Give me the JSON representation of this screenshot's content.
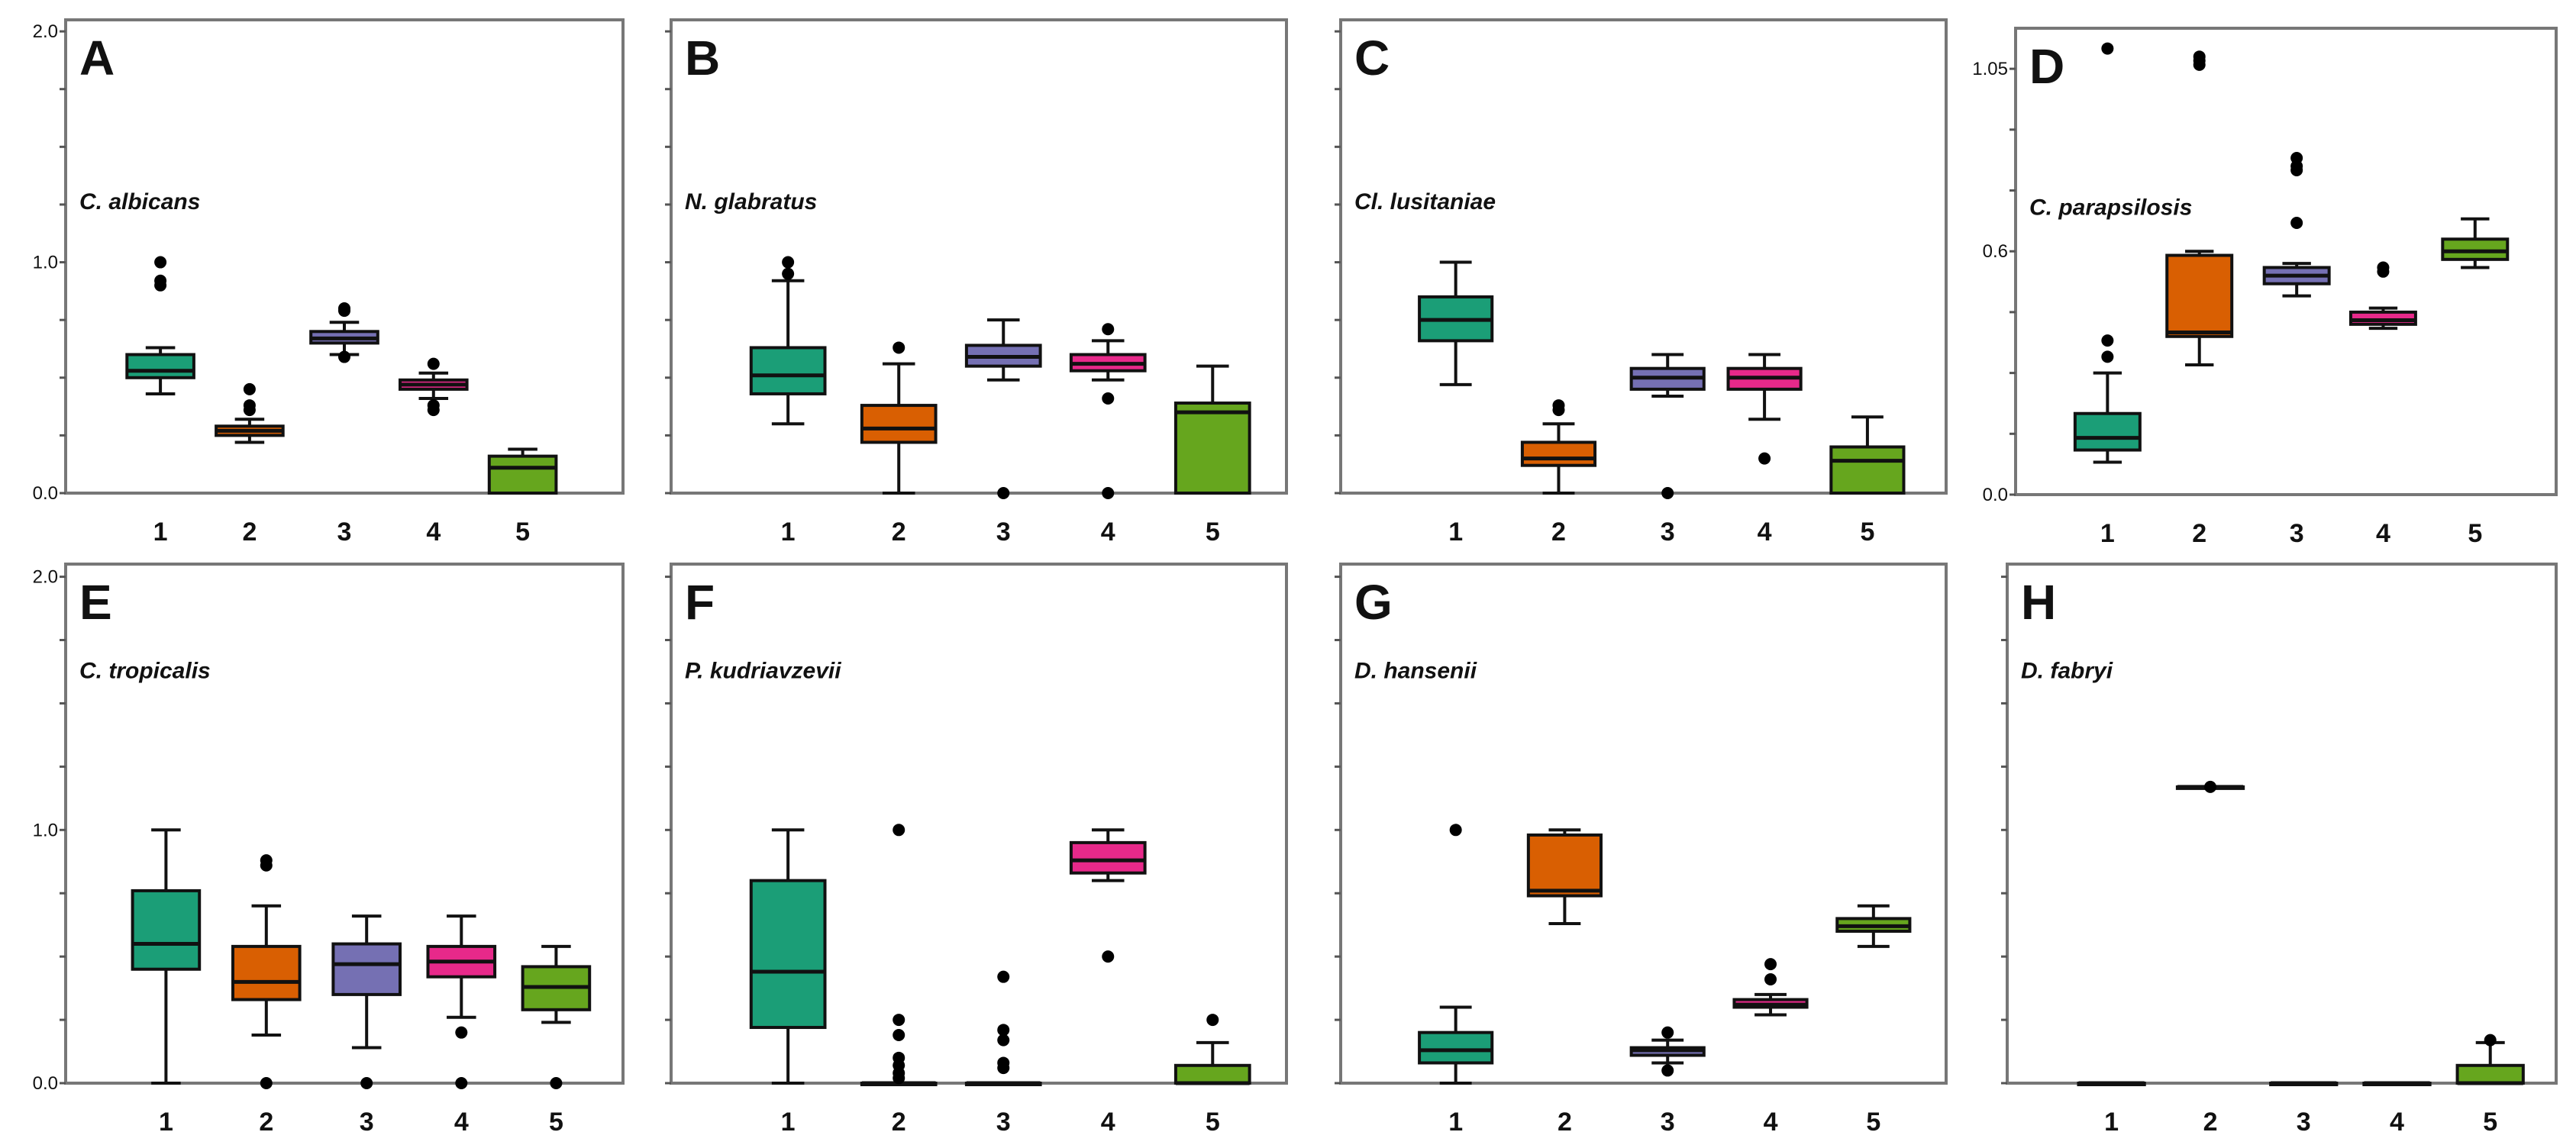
{
  "colors": [
    "#1b9e77",
    "#d95f02",
    "#7570b3",
    "#e7298a",
    "#66a61e"
  ],
  "chart_data": [
    {
      "type": "box",
      "panel": "A",
      "species": "C. albicans",
      "ylim": [
        0,
        2.05
      ],
      "yticks": [
        0,
        0.25,
        0.5,
        0.75,
        1,
        1.25,
        1.5,
        1.75,
        2
      ],
      "ytick_labels": [
        {
          "v": 0,
          "t": "0.0"
        },
        {
          "v": 1,
          "t": "1.0"
        },
        {
          "v": 2,
          "t": "2.0"
        }
      ],
      "categories": [
        "1",
        "2",
        "3",
        "4",
        "5"
      ],
      "boxes": [
        {
          "q1": 0.5,
          "median": 0.53,
          "q3": 0.6,
          "wlo": 0.43,
          "whi": 0.63,
          "outliers": [
            1.0,
            0.92,
            0.9
          ]
        },
        {
          "q1": 0.25,
          "median": 0.27,
          "q3": 0.29,
          "wlo": 0.22,
          "whi": 0.32,
          "outliers": [
            0.45,
            0.38,
            0.36
          ]
        },
        {
          "q1": 0.65,
          "median": 0.67,
          "q3": 0.7,
          "wlo": 0.6,
          "whi": 0.74,
          "outliers": [
            0.8,
            0.79,
            0.59
          ]
        },
        {
          "q1": 0.45,
          "median": 0.47,
          "q3": 0.49,
          "wlo": 0.41,
          "whi": 0.52,
          "outliers": [
            0.56,
            0.38,
            0.36
          ]
        },
        {
          "q1": 0,
          "median": 0.11,
          "q3": 0.16,
          "wlo": 0,
          "whi": 0.19,
          "outliers": []
        }
      ]
    },
    {
      "type": "box",
      "panel": "B",
      "species": "N. glabratus",
      "ylim": [
        0,
        2.05
      ],
      "yticks": [
        0,
        0.25,
        0.5,
        0.75,
        1,
        1.25,
        1.5,
        1.75,
        2
      ],
      "ytick_labels": [],
      "categories": [
        "1",
        "2",
        "3",
        "4",
        "5"
      ],
      "boxes": [
        {
          "q1": 0.43,
          "median": 0.51,
          "q3": 0.63,
          "wlo": 0.3,
          "whi": 0.92,
          "outliers": [
            1.0,
            0.95
          ]
        },
        {
          "q1": 0.22,
          "median": 0.28,
          "q3": 0.38,
          "wlo": 0,
          "whi": 0.56,
          "outliers": [
            0.63
          ]
        },
        {
          "q1": 0.55,
          "median": 0.59,
          "q3": 0.64,
          "wlo": 0.49,
          "whi": 0.75,
          "outliers": [
            0
          ]
        },
        {
          "q1": 0.53,
          "median": 0.56,
          "q3": 0.6,
          "wlo": 0.49,
          "whi": 0.66,
          "outliers": [
            0.71,
            0.41,
            0
          ]
        },
        {
          "q1": 0,
          "median": 0.35,
          "q3": 0.39,
          "wlo": 0,
          "whi": 0.55,
          "outliers": []
        }
      ]
    },
    {
      "type": "box",
      "panel": "C",
      "species": "Cl. lusitaniae",
      "ylim": [
        0,
        2.05
      ],
      "yticks": [
        0,
        0.25,
        0.5,
        0.75,
        1,
        1.25,
        1.5,
        1.75,
        2
      ],
      "ytick_labels": [],
      "categories": [
        "1",
        "2",
        "3",
        "4",
        "5"
      ],
      "boxes": [
        {
          "q1": 0.66,
          "median": 0.75,
          "q3": 0.85,
          "wlo": 0.47,
          "whi": 1.0,
          "outliers": []
        },
        {
          "q1": 0.12,
          "median": 0.15,
          "q3": 0.22,
          "wlo": 0,
          "whi": 0.3,
          "outliers": [
            0.38,
            0.36
          ]
        },
        {
          "q1": 0.45,
          "median": 0.5,
          "q3": 0.54,
          "wlo": 0.42,
          "whi": 0.6,
          "outliers": [
            0
          ]
        },
        {
          "q1": 0.45,
          "median": 0.5,
          "q3": 0.54,
          "wlo": 0.32,
          "whi": 0.6,
          "outliers": [
            0.15
          ]
        },
        {
          "q1": 0,
          "median": 0.14,
          "q3": 0.2,
          "wlo": 0,
          "whi": 0.33,
          "outliers": []
        }
      ]
    },
    {
      "type": "box",
      "panel": "D",
      "species": "C. parapsilosis",
      "ylim": [
        0,
        1.15
      ],
      "yticks": [
        0,
        0.15,
        0.3,
        0.45,
        0.6,
        0.75,
        0.9,
        1.05
      ],
      "ytick_labels": [
        {
          "v": 0,
          "t": "0.0"
        },
        {
          "v": 0.6,
          "t": "0.6"
        },
        {
          "v": 1.05,
          "t": "1.05"
        }
      ],
      "categories": [
        "1",
        "2",
        "3",
        "4",
        "5"
      ],
      "boxes": [
        {
          "q1": 0.11,
          "median": 0.14,
          "q3": 0.2,
          "wlo": 0.08,
          "whi": 0.3,
          "outliers": [
            1.1,
            0.38,
            0.34
          ]
        },
        {
          "q1": 0.39,
          "median": 0.4,
          "q3": 0.59,
          "wlo": 0.32,
          "whi": 0.6,
          "outliers": [
            1.08,
            1.07,
            1.06
          ]
        },
        {
          "q1": 0.52,
          "median": 0.54,
          "q3": 0.56,
          "wlo": 0.49,
          "whi": 0.57,
          "outliers": [
            0.83,
            0.81,
            0.8,
            0.67
          ]
        },
        {
          "q1": 0.42,
          "median": 0.43,
          "q3": 0.45,
          "wlo": 0.41,
          "whi": 0.46,
          "outliers": [
            0.56,
            0.55
          ]
        },
        {
          "q1": 0.58,
          "median": 0.6,
          "q3": 0.63,
          "wlo": 0.56,
          "whi": 0.68,
          "outliers": []
        }
      ]
    },
    {
      "type": "box",
      "panel": "E",
      "species": "C. tropicalis",
      "ylim": [
        0,
        2.05
      ],
      "yticks": [
        0,
        0.25,
        0.5,
        0.75,
        1,
        1.25,
        1.5,
        1.75,
        2
      ],
      "ytick_labels": [
        {
          "v": 0,
          "t": "0.0"
        },
        {
          "v": 1,
          "t": "1.0"
        },
        {
          "v": 2,
          "t": "2.0"
        }
      ],
      "categories": [
        "1",
        "2",
        "3",
        "4",
        "5"
      ],
      "boxes": [
        {
          "q1": 0.45,
          "median": 0.55,
          "q3": 0.76,
          "wlo": 0,
          "whi": 1.0,
          "outliers": []
        },
        {
          "q1": 0.33,
          "median": 0.4,
          "q3": 0.54,
          "wlo": 0.19,
          "whi": 0.7,
          "outliers": [
            0.88,
            0.86,
            0
          ]
        },
        {
          "q1": 0.35,
          "median": 0.47,
          "q3": 0.55,
          "wlo": 0.14,
          "whi": 0.66,
          "outliers": [
            0
          ]
        },
        {
          "q1": 0.42,
          "median": 0.48,
          "q3": 0.54,
          "wlo": 0.26,
          "whi": 0.66,
          "outliers": [
            0.2,
            0
          ]
        },
        {
          "q1": 0.29,
          "median": 0.38,
          "q3": 0.46,
          "wlo": 0.24,
          "whi": 0.54,
          "outliers": [
            0
          ]
        }
      ]
    },
    {
      "type": "box",
      "panel": "F",
      "species": "P. kudriavzevii",
      "ylim": [
        0,
        2.05
      ],
      "yticks": [
        0,
        0.25,
        0.5,
        0.75,
        1,
        1.25,
        1.5,
        1.75,
        2
      ],
      "ytick_labels": [],
      "categories": [
        "1",
        "2",
        "3",
        "4",
        "5"
      ],
      "boxes": [
        {
          "q1": 0.22,
          "median": 0.44,
          "q3": 0.8,
          "wlo": 0,
          "whi": 1.0,
          "outliers": []
        },
        {
          "q1": 0,
          "median": 0,
          "q3": 0,
          "wlo": 0,
          "whi": 0,
          "outliers": [
            1.0,
            0.25,
            0.19,
            0.1,
            0.07,
            0.04,
            0.02
          ]
        },
        {
          "q1": 0,
          "median": 0,
          "q3": 0,
          "wlo": 0,
          "whi": 0,
          "outliers": [
            0.42,
            0.21,
            0.17,
            0.08,
            0.06
          ]
        },
        {
          "q1": 0.83,
          "median": 0.88,
          "q3": 0.95,
          "wlo": 0.8,
          "whi": 1.0,
          "outliers": [
            0.5
          ]
        },
        {
          "q1": 0,
          "median": 0,
          "q3": 0.07,
          "wlo": 0,
          "whi": 0.16,
          "outliers": [
            0.25
          ]
        }
      ]
    },
    {
      "type": "box",
      "panel": "G",
      "species": "D. hansenii",
      "ylim": [
        0,
        2.05
      ],
      "yticks": [
        0,
        0.25,
        0.5,
        0.75,
        1,
        1.25,
        1.5,
        1.75,
        2
      ],
      "ytick_labels": [],
      "categories": [
        "1",
        "2",
        "3",
        "4",
        "5"
      ],
      "boxes": [
        {
          "q1": 0.08,
          "median": 0.13,
          "q3": 0.2,
          "wlo": 0,
          "whi": 0.3,
          "outliers": [
            1.0
          ]
        },
        {
          "q1": 0.74,
          "median": 0.76,
          "q3": 0.98,
          "wlo": 0.63,
          "whi": 1.0,
          "outliers": []
        },
        {
          "q1": 0.11,
          "median": 0.13,
          "q3": 0.14,
          "wlo": 0.08,
          "whi": 0.17,
          "outliers": [
            0.2,
            0.05
          ]
        },
        {
          "q1": 0.3,
          "median": 0.31,
          "q3": 0.33,
          "wlo": 0.27,
          "whi": 0.35,
          "outliers": [
            0.47,
            0.41
          ]
        },
        {
          "q1": 0.6,
          "median": 0.62,
          "q3": 0.65,
          "wlo": 0.54,
          "whi": 0.7,
          "outliers": []
        }
      ]
    },
    {
      "type": "box",
      "panel": "H",
      "species": "D. fabryi",
      "ylim": [
        0,
        2.05
      ],
      "yticks": [
        0,
        0.25,
        0.5,
        0.75,
        1,
        1.25,
        1.5,
        1.75,
        2
      ],
      "ytick_labels": [],
      "categories": [
        "1",
        "2",
        "3",
        "4",
        "5"
      ],
      "boxes": [
        {
          "q1": 0,
          "median": 0,
          "q3": 0,
          "wlo": 0,
          "whi": 0,
          "outliers": []
        },
        {
          "q1": 1.17,
          "median": 1.17,
          "q3": 1.17,
          "wlo": 1.17,
          "whi": 1.17,
          "outliers": [
            1.17
          ]
        },
        {
          "q1": 0,
          "median": 0,
          "q3": 0,
          "wlo": 0,
          "whi": 0,
          "outliers": []
        },
        {
          "q1": 0,
          "median": 0,
          "q3": 0,
          "wlo": 0,
          "whi": 0,
          "outliers": []
        },
        {
          "q1": 0,
          "median": 0,
          "q3": 0.07,
          "wlo": 0,
          "whi": 0.16,
          "outliers": [
            0.17
          ]
        }
      ]
    }
  ]
}
